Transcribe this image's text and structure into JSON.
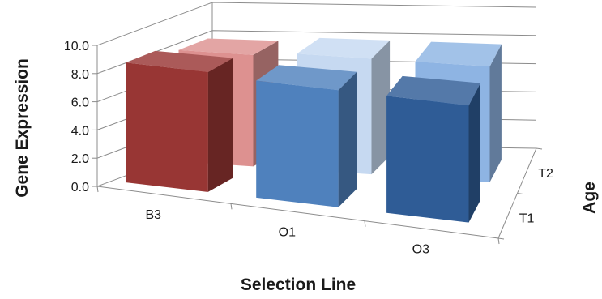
{
  "chart_data": {
    "type": "bar",
    "style": "3d-column",
    "title": "",
    "xlabel": "Selection Line",
    "ylabel": "Gene Expression",
    "zlabel": "Age",
    "categories": [
      "B3",
      "O1",
      "O3"
    ],
    "depth_categories": [
      "T1",
      "T2"
    ],
    "ylim": [
      0,
      10
    ],
    "ytick_labels": [
      "0.0",
      "2.0",
      "4.0",
      "6.0",
      "8.0",
      "10.0"
    ],
    "grid": true,
    "legend": "none",
    "series": [
      {
        "depth": "T1",
        "values": [
          8.5,
          8.3,
          8.3
        ],
        "colors": [
          "#983634",
          "#4f81bd",
          "#2f5c96"
        ]
      },
      {
        "depth": "T2",
        "values": [
          7.9,
          8.2,
          8.2
        ],
        "colors": [
          "#dd9190",
          "#c6d9f1",
          "#8eb4e3"
        ]
      }
    ]
  }
}
